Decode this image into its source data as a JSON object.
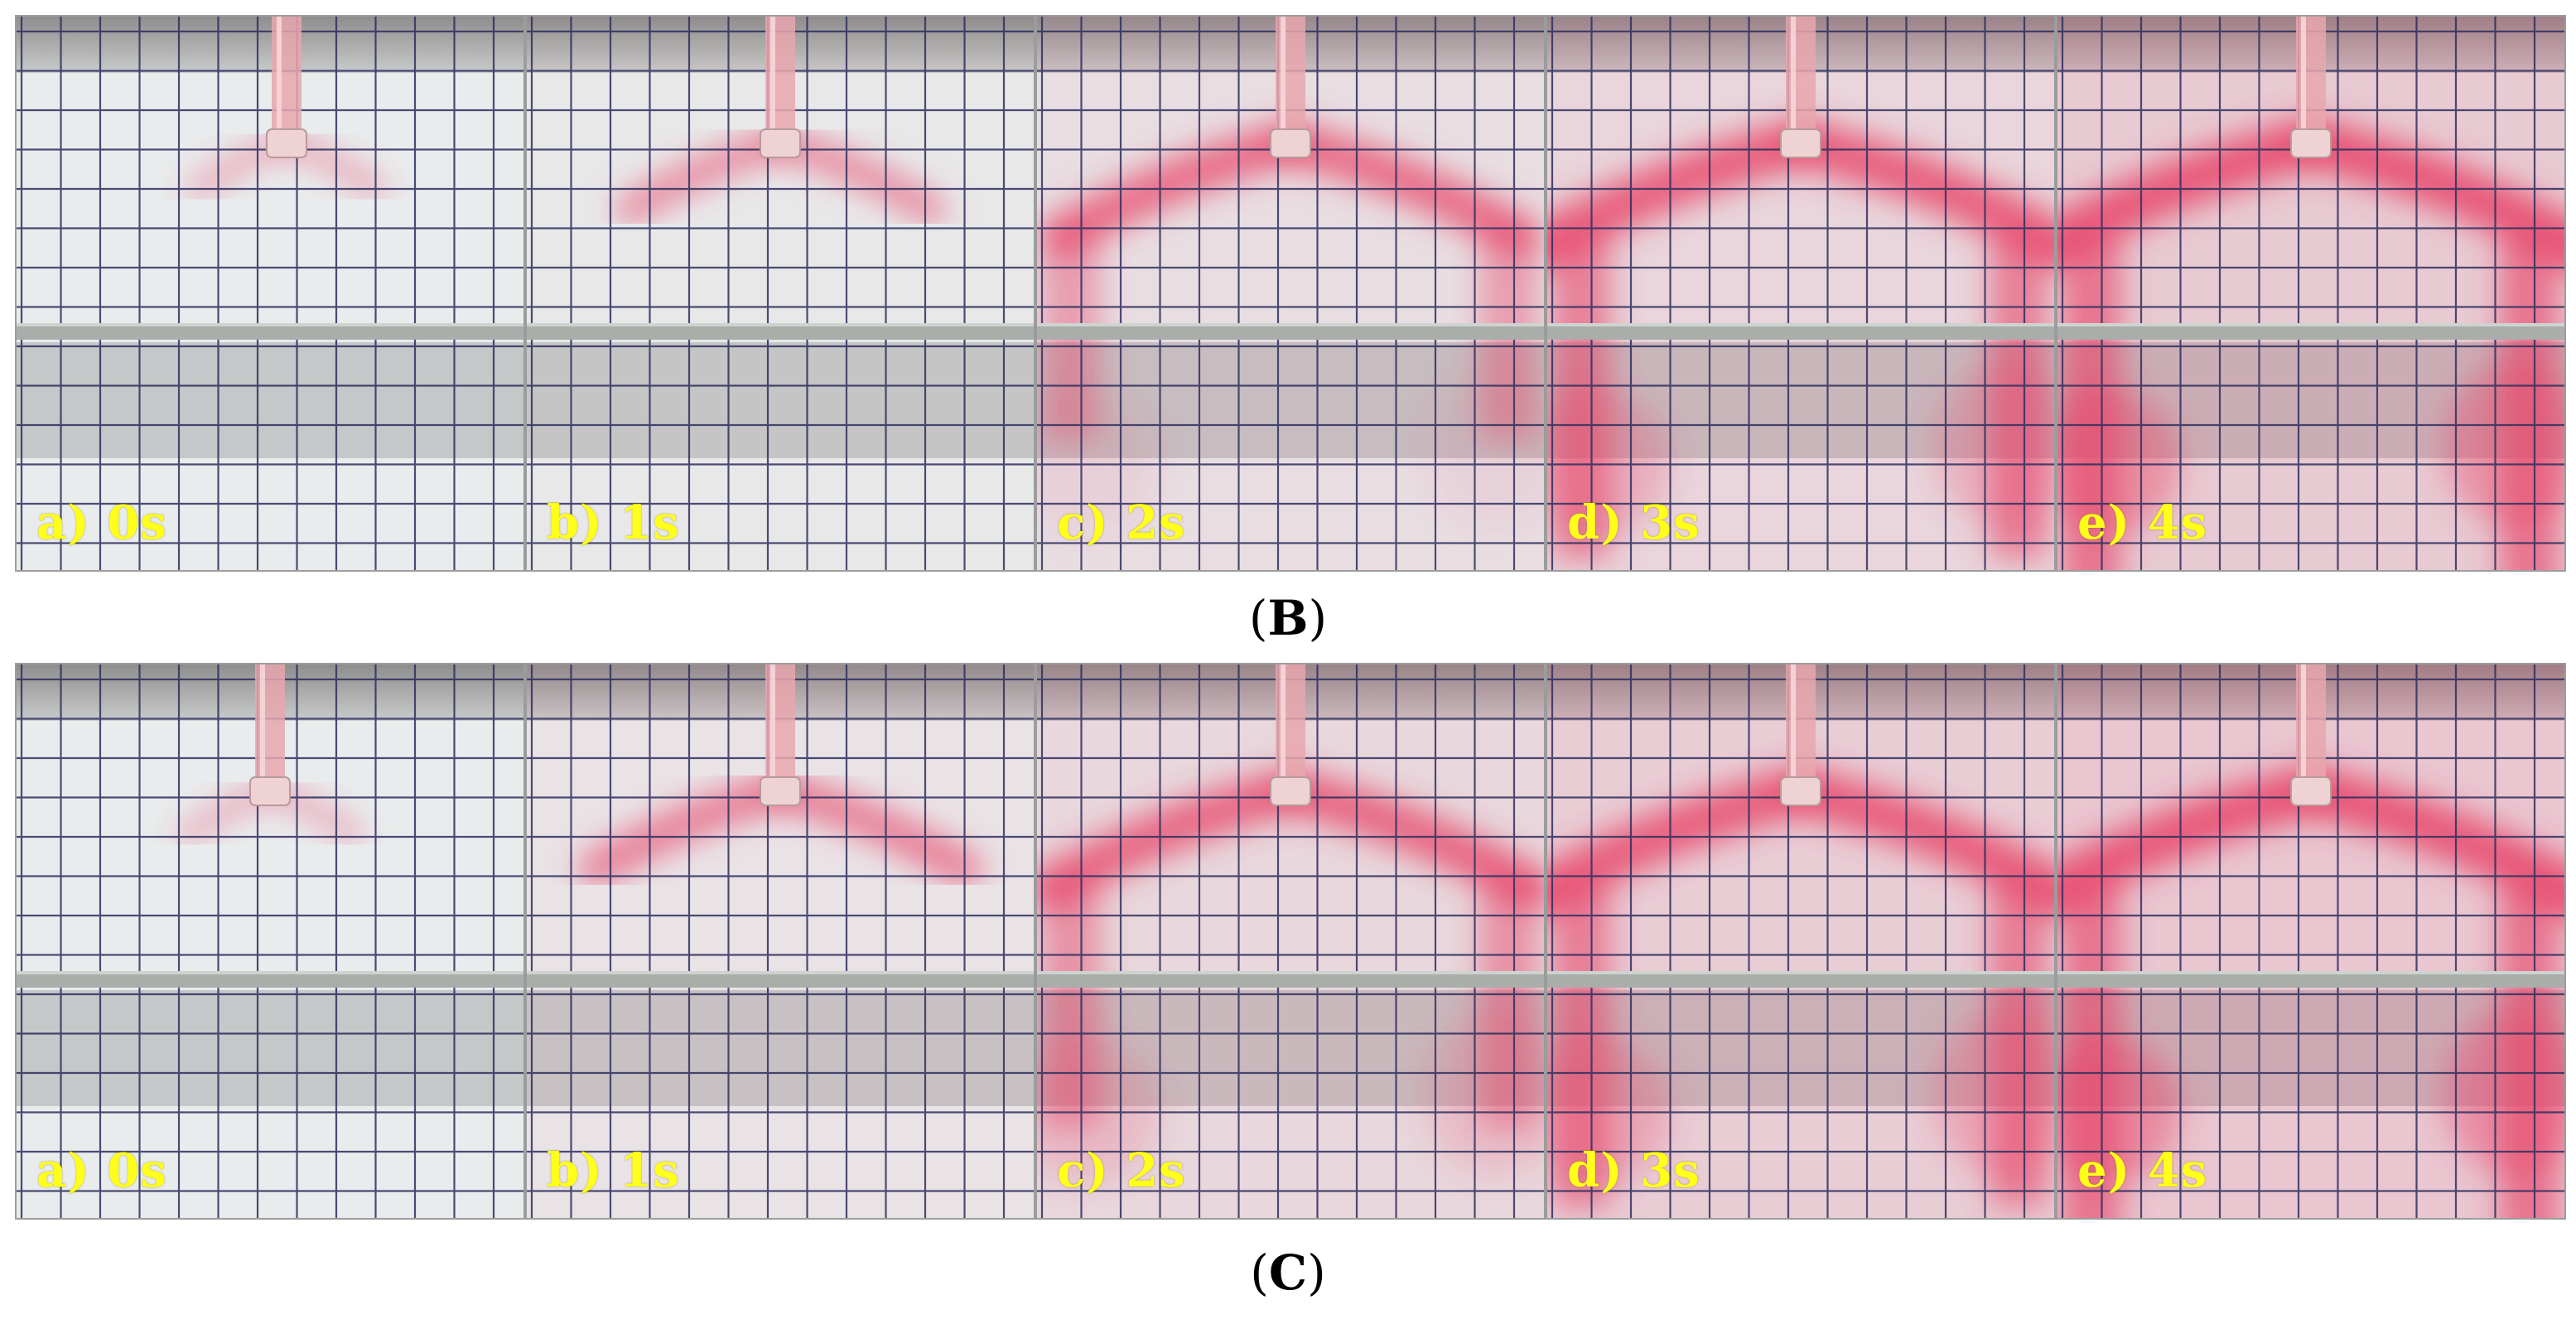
{
  "figure": {
    "rows": [
      {
        "id": "B",
        "caption_open": "(",
        "caption_letter": "B",
        "caption_close": ")",
        "panels": [
          {
            "label": "a) 0s",
            "spread": 0.18,
            "tint": 0.0,
            "low_stain": 0.0
          },
          {
            "label": "b) 1s",
            "spread": 0.45,
            "tint": 0.05,
            "low_stain": 0.0
          },
          {
            "label": "c) 2s",
            "spread": 0.8,
            "tint": 0.18,
            "low_stain": 0.15
          },
          {
            "label": "d) 3s",
            "spread": 0.95,
            "tint": 0.3,
            "low_stain": 0.5
          },
          {
            "label": "e) 4s",
            "spread": 1.0,
            "tint": 0.45,
            "low_stain": 0.8
          }
        ]
      },
      {
        "id": "C",
        "caption_open": "(",
        "caption_letter": "C",
        "caption_close": ")",
        "panels": [
          {
            "label": "a) 0s",
            "spread": 0.15,
            "tint": 0.0,
            "low_stain": 0.0
          },
          {
            "label": "b) 1s",
            "spread": 0.6,
            "tint": 0.12,
            "low_stain": 0.0
          },
          {
            "label": "c) 2s",
            "spread": 0.85,
            "tint": 0.28,
            "low_stain": 0.35
          },
          {
            "label": "d) 3s",
            "spread": 0.95,
            "tint": 0.4,
            "low_stain": 0.55
          },
          {
            "label": "e) 4s",
            "spread": 1.0,
            "tint": 0.5,
            "low_stain": 0.85
          }
        ]
      }
    ],
    "colors": {
      "label_text": "#ffff1a",
      "dye": "#e8456a",
      "grid_line": "#2e2f5e",
      "water": "#e9eced",
      "shelf": "#a9aeab"
    }
  }
}
